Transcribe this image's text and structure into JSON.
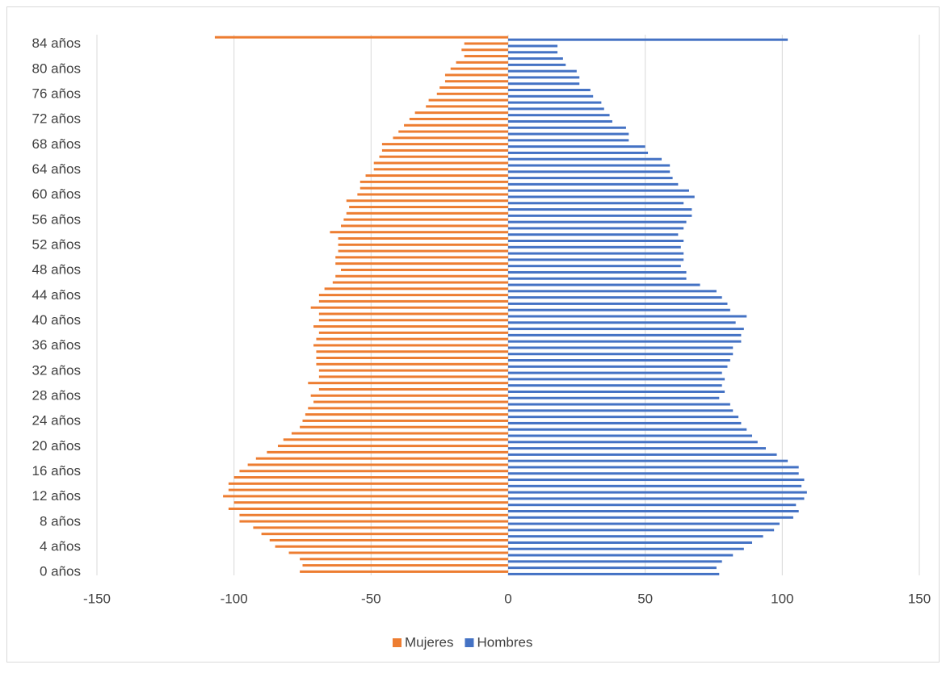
{
  "chart_data": {
    "type": "bar",
    "orientation": "horizontal",
    "categories": [
      "0 años",
      null,
      null,
      null,
      "4 años",
      null,
      null,
      null,
      "8 años",
      null,
      null,
      null,
      "12 años",
      null,
      null,
      null,
      "16 años",
      null,
      null,
      null,
      "20 años",
      null,
      null,
      null,
      "24 años",
      null,
      null,
      null,
      "28 años",
      null,
      null,
      null,
      "32 años",
      null,
      null,
      null,
      "36 años",
      null,
      null,
      null,
      "40 años",
      null,
      null,
      null,
      "44 años",
      null,
      null,
      null,
      "48 años",
      null,
      null,
      null,
      "52 años",
      null,
      null,
      null,
      "56 años",
      null,
      null,
      null,
      "60 años",
      null,
      null,
      null,
      "64 años",
      null,
      null,
      null,
      "68 años",
      null,
      null,
      null,
      "72 años",
      null,
      null,
      null,
      "76 años",
      null,
      null,
      null,
      "80 años",
      null,
      null,
      null,
      "84 años",
      null
    ],
    "series": [
      {
        "name": "Mujeres",
        "color": "#ed7d31",
        "values": [
          -76,
          -75,
          -76,
          -80,
          -85,
          -87,
          -90,
          -93,
          -98,
          -98,
          -102,
          -100,
          -104,
          -102,
          -102,
          -100,
          -98,
          -95,
          -92,
          -88,
          -84,
          -82,
          -79,
          -76,
          -75,
          -74,
          -73,
          -71,
          -72,
          -69,
          -73,
          -69,
          -69,
          -70,
          -70,
          -70,
          -71,
          -70,
          -69,
          -71,
          -69,
          -69,
          -72,
          -69,
          -69,
          -67,
          -64,
          -63,
          -61,
          -63,
          -63,
          -62,
          -62,
          -62,
          -65,
          -61,
          -60,
          -59,
          -58,
          -59,
          -55,
          -54,
          -54,
          -52,
          -49,
          -49,
          -47,
          -46,
          -46,
          -42,
          -40,
          -38,
          -36,
          -34,
          -30,
          -29,
          -26,
          -25,
          -23,
          -23,
          -21,
          -19,
          -16,
          -17,
          -16,
          -107
        ]
      },
      {
        "name": "Hombres",
        "color": "#4472c4",
        "values": [
          77,
          76,
          78,
          82,
          86,
          89,
          93,
          97,
          99,
          104,
          106,
          105,
          108,
          109,
          107,
          108,
          106,
          106,
          102,
          98,
          94,
          91,
          89,
          87,
          85,
          84,
          82,
          81,
          77,
          79,
          78,
          79,
          78,
          80,
          81,
          82,
          82,
          85,
          85,
          86,
          83,
          87,
          81,
          80,
          78,
          76,
          70,
          65,
          65,
          63,
          64,
          64,
          63,
          64,
          62,
          64,
          65,
          67,
          67,
          64,
          68,
          66,
          62,
          60,
          59,
          59,
          56,
          51,
          50,
          44,
          44,
          43,
          38,
          37,
          35,
          34,
          31,
          30,
          26,
          26,
          25,
          21,
          20,
          18,
          18,
          102
        ]
      }
    ],
    "xlim": [
      -150,
      150
    ],
    "xticks": [
      -150,
      -100,
      -50,
      0,
      50,
      100,
      150
    ],
    "grid": true,
    "legend": "bottom"
  }
}
